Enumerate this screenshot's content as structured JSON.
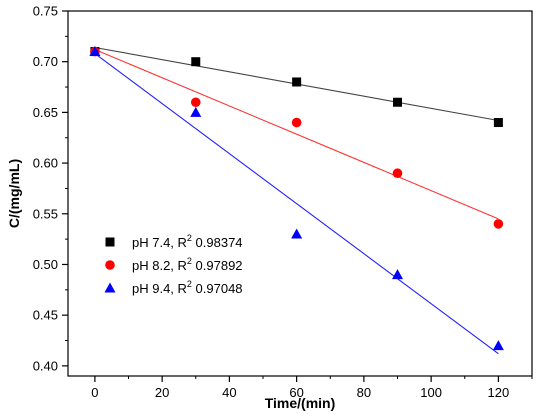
{
  "chart_data": {
    "type": "scatter",
    "title": "",
    "xlabel": "Time/(min)",
    "ylabel": "C/(mg/mL)",
    "xlim": [
      -8,
      130
    ],
    "ylim": [
      0.39,
      0.75
    ],
    "x_ticks": [
      0,
      20,
      40,
      60,
      80,
      100,
      120
    ],
    "y_ticks": [
      0.4,
      0.45,
      0.5,
      0.55,
      0.6,
      0.65,
      0.7,
      0.75
    ],
    "grid": false,
    "legend_position": "bottom-left",
    "series": [
      {
        "name": "pH 7.4, R",
        "r2_value": "0.98374",
        "marker": "square",
        "color": "#000000",
        "line_color": "#444444",
        "x": [
          0,
          30,
          60,
          90,
          120
        ],
        "y": [
          0.71,
          0.7,
          0.68,
          0.66,
          0.64
        ],
        "fit_line": {
          "x": [
            0,
            120
          ],
          "y": [
            0.714,
            0.642
          ]
        }
      },
      {
        "name": "pH 8.2, R",
        "r2_value": "0.97892",
        "marker": "circle",
        "color": "#ff0000",
        "line_color": "#ff3333",
        "x": [
          0,
          30,
          60,
          90,
          120
        ],
        "y": [
          0.71,
          0.66,
          0.64,
          0.59,
          0.54
        ],
        "fit_line": {
          "x": [
            0,
            120
          ],
          "y": [
            0.712,
            0.545
          ]
        }
      },
      {
        "name": "pH 9.4, R",
        "r2_value": "0.97048",
        "marker": "triangle",
        "color": "#0000ff",
        "line_color": "#2222ff",
        "x": [
          0,
          30,
          60,
          90,
          120
        ],
        "y": [
          0.71,
          0.65,
          0.53,
          0.49,
          0.42
        ],
        "fit_line": {
          "x": [
            0,
            120
          ],
          "y": [
            0.708,
            0.412
          ]
        }
      }
    ]
  }
}
